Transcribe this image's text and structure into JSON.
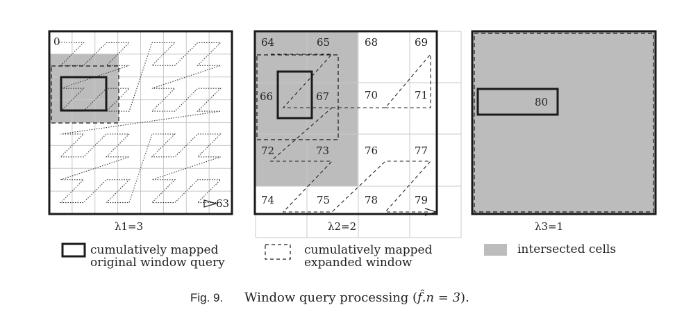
{
  "panels": [
    {
      "id": "p1",
      "lambda_label": "λ1=3",
      "start_label": "0",
      "end_label": "63"
    },
    {
      "id": "p2",
      "lambda_label": "λ2=2",
      "cells": [
        {
          "label": "64"
        },
        {
          "label": "65"
        },
        {
          "label": "68"
        },
        {
          "label": "69"
        },
        {
          "label": "66"
        },
        {
          "label": "67"
        },
        {
          "label": "70"
        },
        {
          "label": "71"
        },
        {
          "label": "72"
        },
        {
          "label": "73"
        },
        {
          "label": "76"
        },
        {
          "label": "77"
        },
        {
          "label": "74"
        },
        {
          "label": "75"
        },
        {
          "label": "78"
        },
        {
          "label": "79"
        }
      ]
    },
    {
      "id": "p3",
      "lambda_label": "λ3=1",
      "cell_label": "80"
    }
  ],
  "legend": {
    "original": {
      "line1": "cumulatively mapped",
      "line2": "original window query"
    },
    "expanded": {
      "line1": "cumulatively mapped",
      "line2": "expanded window"
    },
    "intersected": {
      "line1": "intersected cells"
    }
  },
  "caption": {
    "prefix": "Fig. 9.",
    "text": "Window query processing (",
    "formula": "f̂.n = 3",
    "suffix": ")."
  },
  "colors": {
    "gray_fill": "#bcbcbc",
    "grid": "#c8c8c8",
    "stroke": "#1a1a1a"
  }
}
